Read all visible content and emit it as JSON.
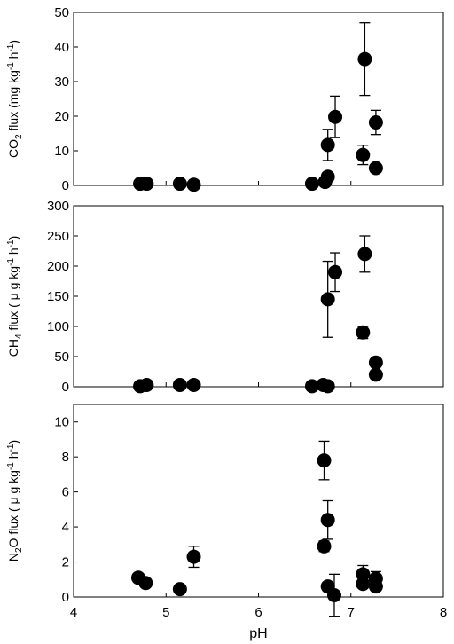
{
  "chart_data": [
    {
      "type": "scatter",
      "ylabel": {
        "pre": "CO",
        "sub": "2",
        "mid": " flux (mg kg",
        "sup1": "-1",
        "mid2": " h",
        "sup2": "-1",
        "post": ")"
      },
      "ylim": [
        0,
        50
      ],
      "yticks": [
        0,
        10,
        20,
        30,
        40,
        50
      ],
      "points": [
        {
          "x": 4.72,
          "y": 0.5,
          "err": 0
        },
        {
          "x": 4.79,
          "y": 0.5,
          "err": 0
        },
        {
          "x": 5.15,
          "y": 0.5,
          "err": 0
        },
        {
          "x": 5.3,
          "y": 0.2,
          "err": 0
        },
        {
          "x": 6.58,
          "y": 0.5,
          "err": 0
        },
        {
          "x": 6.72,
          "y": 1.0,
          "err": 0
        },
        {
          "x": 6.75,
          "y": 2.5,
          "err": 0
        },
        {
          "x": 6.75,
          "y": 11.7,
          "err": 4.5
        },
        {
          "x": 6.83,
          "y": 19.8,
          "err": 6.0
        },
        {
          "x": 7.13,
          "y": 8.8,
          "err": 2.8
        },
        {
          "x": 7.15,
          "y": 36.5,
          "err": 10.5
        },
        {
          "x": 7.27,
          "y": 18.2,
          "err": 3.5
        },
        {
          "x": 7.27,
          "y": 5.0,
          "err": 0
        }
      ]
    },
    {
      "type": "scatter",
      "ylabel": {
        "pre": "CH",
        "sub": "4",
        "mid": " flux ( μ g kg",
        "sup1": "-1",
        "mid2": " h",
        "sup2": "-1",
        "post": ")"
      },
      "ylim": [
        0,
        300
      ],
      "yticks": [
        0,
        50,
        100,
        150,
        200,
        250,
        300
      ],
      "points": [
        {
          "x": 4.72,
          "y": 1,
          "err": 0
        },
        {
          "x": 4.79,
          "y": 3,
          "err": 0
        },
        {
          "x": 5.15,
          "y": 3,
          "err": 0
        },
        {
          "x": 5.3,
          "y": 3,
          "err": 0
        },
        {
          "x": 6.58,
          "y": 1,
          "err": 0
        },
        {
          "x": 6.7,
          "y": 3,
          "err": 0
        },
        {
          "x": 6.75,
          "y": 1,
          "err": 0
        },
        {
          "x": 6.75,
          "y": 145,
          "err": 63
        },
        {
          "x": 6.83,
          "y": 190,
          "err": 32
        },
        {
          "x": 7.13,
          "y": 90,
          "err": 10
        },
        {
          "x": 7.15,
          "y": 220,
          "err": 30
        },
        {
          "x": 7.27,
          "y": 40,
          "err": 0
        },
        {
          "x": 7.27,
          "y": 20,
          "err": 0
        }
      ]
    },
    {
      "type": "scatter",
      "ylabel": {
        "pre": "N",
        "sub": "2",
        "mid": "O flux ( μ g kg",
        "sup1": "-1",
        "mid2": " h",
        "sup2": "-1",
        "post": ")"
      },
      "xlabel": "pH",
      "ylim": [
        0,
        11
      ],
      "yticks": [
        0,
        2,
        4,
        6,
        8,
        10
      ],
      "xlim": [
        4,
        8
      ],
      "xticks": [
        4,
        5,
        6,
        7,
        8
      ],
      "points": [
        {
          "x": 4.7,
          "y": 1.1,
          "err": 0
        },
        {
          "x": 4.78,
          "y": 0.8,
          "err": 0
        },
        {
          "x": 5.15,
          "y": 0.45,
          "err": 0
        },
        {
          "x": 5.3,
          "y": 2.3,
          "err": 0.6
        },
        {
          "x": 6.71,
          "y": 7.8,
          "err": 1.1
        },
        {
          "x": 6.71,
          "y": 2.9,
          "err": 0.3
        },
        {
          "x": 6.75,
          "y": 4.4,
          "err": 1.1
        },
        {
          "x": 6.75,
          "y": 0.6,
          "err": 0
        },
        {
          "x": 6.82,
          "y": 0.1,
          "err": 1.2
        },
        {
          "x": 7.13,
          "y": 1.3,
          "err": 0.5
        },
        {
          "x": 7.13,
          "y": 0.75,
          "err": 0
        },
        {
          "x": 7.27,
          "y": 1.05,
          "err": 0.4
        },
        {
          "x": 7.27,
          "y": 0.6,
          "err": 0
        }
      ]
    }
  ]
}
